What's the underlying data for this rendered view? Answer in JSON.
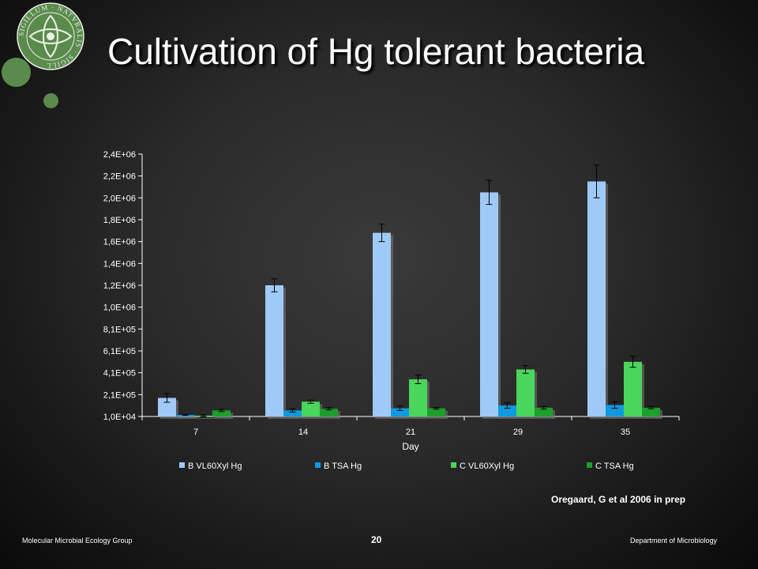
{
  "slide": {
    "title": "Cultivation of Hg tolerant bacteria",
    "citation": "Oregaard, G et al 2006 in prep",
    "footer_left": "Molecular Microbial Ecology Group",
    "page_number": "20",
    "footer_right": "Department of Microbiology",
    "logo_text": "SIGILLUM · NATVRALIS · SIGILL",
    "accent_color": "#5b8a4d"
  },
  "chart_data": {
    "type": "bar",
    "title": "",
    "xlabel": "Day",
    "ylabel": "",
    "categories": [
      "7",
      "14",
      "21",
      "29",
      "35"
    ],
    "y_tick_labels": [
      "1,0E+04",
      "2,1E+05",
      "4,1E+05",
      "6,1E+05",
      "8,1E+05",
      "1,0E+06",
      "1,2E+06",
      "1,4E+06",
      "1,6E+06",
      "1,8E+06",
      "2,0E+06",
      "2,2E+06",
      "2,4E+06"
    ],
    "ylim": [
      10000,
      2410000
    ],
    "grid": false,
    "legend_position": "bottom",
    "error_bars": true,
    "series": [
      {
        "name": "B VL60Xyl Hg",
        "color": "#9fcaf8",
        "values": [
          180000,
          1210000,
          1690000,
          2060000,
          2160000
        ],
        "errors": [
          40000,
          60000,
          80000,
          110000,
          150000
        ]
      },
      {
        "name": "B TSA Hg",
        "color": "#0f9ae0",
        "values": [
          25000,
          65000,
          85000,
          110000,
          115000
        ],
        "errors": [
          5000,
          15000,
          20000,
          25000,
          30000
        ]
      },
      {
        "name": "C VL60Xyl Hg",
        "color": "#4ad65c",
        "values": [
          18000,
          145000,
          350000,
          440000,
          510000
        ],
        "errors": [
          8000,
          15000,
          40000,
          35000,
          50000
        ]
      },
      {
        "name": "C TSA Hg",
        "color": "#1e9e2c",
        "values": [
          65000,
          80000,
          85000,
          90000,
          90000
        ],
        "errors": [
          10000,
          10000,
          8000,
          12000,
          10000
        ]
      }
    ]
  }
}
